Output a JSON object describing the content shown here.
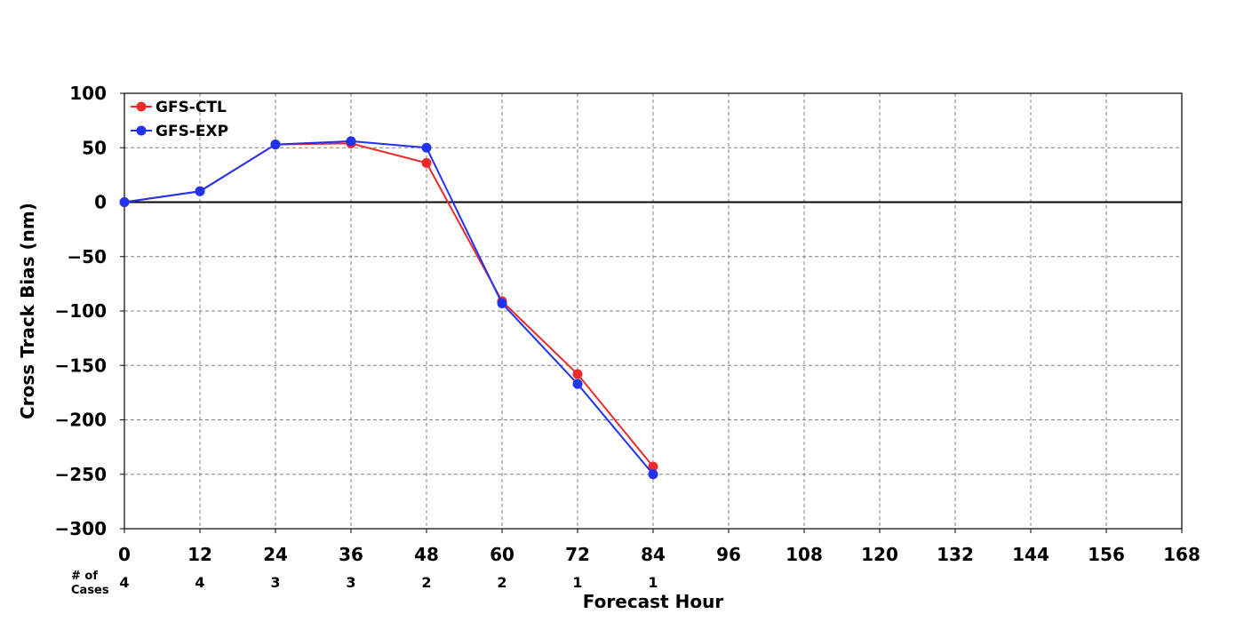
{
  "chart_data": {
    "type": "line",
    "title": "",
    "xlabel": "Forecast Hour",
    "ylabel": "Cross Track Bias (nm)",
    "xlim": [
      0,
      168
    ],
    "ylim": [
      -300,
      100
    ],
    "x_ticks": [
      0,
      12,
      24,
      36,
      48,
      60,
      72,
      84,
      96,
      108,
      120,
      132,
      144,
      156,
      168
    ],
    "y_ticks": [
      100,
      50,
      0,
      -50,
      -100,
      -150,
      -200,
      -250,
      -300
    ],
    "y_tick_labels": [
      "100",
      "50",
      "0",
      "−50",
      "−100",
      "−150",
      "−200",
      "−250",
      "−300"
    ],
    "grid": true,
    "zero_line": true,
    "legend": "top-left",
    "series": [
      {
        "name": "GFS-CTL",
        "color": "#ee2a2a",
        "x": [
          0,
          12,
          24,
          36,
          48,
          60,
          72,
          84
        ],
        "values": [
          0,
          10,
          53,
          54,
          36,
          -91,
          -158,
          -243
        ]
      },
      {
        "name": "GFS-EXP",
        "color": "#2233ee",
        "x": [
          0,
          12,
          24,
          36,
          48,
          60,
          72,
          84
        ],
        "values": [
          0,
          10,
          53,
          56,
          50,
          -93,
          -167,
          -250
        ]
      }
    ],
    "cases": {
      "label_line1": "# of",
      "label_line2": "Cases",
      "x": [
        0,
        12,
        24,
        36,
        48,
        60,
        72,
        84
      ],
      "values": [
        "4",
        "4",
        "3",
        "3",
        "2",
        "2",
        "1",
        "1"
      ]
    }
  }
}
